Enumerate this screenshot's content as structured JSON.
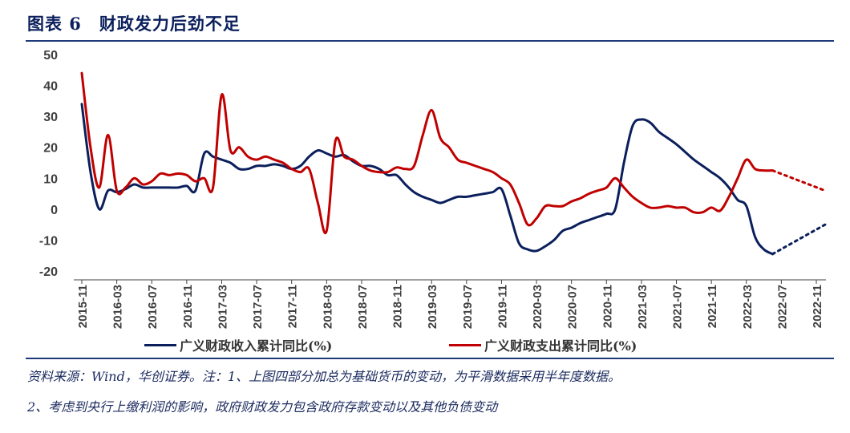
{
  "header": {
    "title": "图表 6　财政发力后劲不足"
  },
  "colors": {
    "revenue": "#0b1f5c",
    "expenditure": "#c00000",
    "axis": "#404040"
  },
  "chart_data": {
    "type": "line",
    "title": "",
    "xlabel": "",
    "ylabel": "",
    "ylim": [
      -20,
      50
    ],
    "yticks": [
      50,
      40,
      30,
      20,
      10,
      0,
      -10,
      -20
    ],
    "grid": false,
    "legend": "bottom",
    "x_start": "2015-11",
    "x_end": "2022-12",
    "x_tick_labels": [
      "2015-11",
      "2016-03",
      "2016-07",
      "2016-11",
      "2017-03",
      "2017-07",
      "2017-11",
      "2018-03",
      "2018-07",
      "2018-11",
      "2019-03",
      "2019-07",
      "2019-11",
      "2020-03",
      "2020-07",
      "2020-11",
      "2021-03",
      "2021-07",
      "2021-11",
      "2022-03",
      "2022-07",
      "2022-11"
    ],
    "series": [
      {
        "name": "广义财政收入累计同比(%)",
        "color": "#0b1f5c",
        "points": [
          [
            "2015-11",
            34
          ],
          [
            "2015-12",
            12
          ],
          [
            "2016-01",
            0
          ],
          [
            "2016-02",
            6
          ],
          [
            "2016-03",
            5.5
          ],
          [
            "2016-04",
            6.5
          ],
          [
            "2016-05",
            8
          ],
          [
            "2016-06",
            7
          ],
          [
            "2016-07",
            7
          ],
          [
            "2016-08",
            7
          ],
          [
            "2016-09",
            7
          ],
          [
            "2016-10",
            7
          ],
          [
            "2016-11",
            7.5
          ],
          [
            "2016-12",
            6
          ],
          [
            "2017-01",
            18
          ],
          [
            "2017-02",
            17
          ],
          [
            "2017-03",
            16
          ],
          [
            "2017-04",
            15
          ],
          [
            "2017-05",
            13
          ],
          [
            "2017-06",
            13
          ],
          [
            "2017-07",
            14
          ],
          [
            "2017-08",
            14
          ],
          [
            "2017-09",
            14.5
          ],
          [
            "2017-10",
            14
          ],
          [
            "2017-11",
            13
          ],
          [
            "2017-12",
            14
          ],
          [
            "2018-01",
            17
          ],
          [
            "2018-02",
            19
          ],
          [
            "2018-03",
            18
          ],
          [
            "2018-04",
            17
          ],
          [
            "2018-05",
            17.5
          ],
          [
            "2018-06",
            15.5
          ],
          [
            "2018-07",
            14
          ],
          [
            "2018-08",
            14
          ],
          [
            "2018-09",
            13
          ],
          [
            "2018-10",
            11
          ],
          [
            "2018-11",
            11
          ],
          [
            "2018-12",
            8
          ],
          [
            "2019-01",
            5.5
          ],
          [
            "2019-02",
            4
          ],
          [
            "2019-03",
            3
          ],
          [
            "2019-04",
            2
          ],
          [
            "2019-05",
            3
          ],
          [
            "2019-06",
            4
          ],
          [
            "2019-07",
            4
          ],
          [
            "2019-08",
            4.5
          ],
          [
            "2019-09",
            5
          ],
          [
            "2019-10",
            5.5
          ],
          [
            "2019-11",
            6.5
          ],
          [
            "2019-12",
            -2
          ],
          [
            "2020-01",
            -11
          ],
          [
            "2020-02",
            -13
          ],
          [
            "2020-03",
            -13.5
          ],
          [
            "2020-04",
            -12
          ],
          [
            "2020-05",
            -10
          ],
          [
            "2020-06",
            -7
          ],
          [
            "2020-07",
            -6
          ],
          [
            "2020-08",
            -4.5
          ],
          [
            "2020-09",
            -3.5
          ],
          [
            "2020-10",
            -2.5
          ],
          [
            "2020-11",
            -1.5
          ],
          [
            "2020-12",
            0
          ],
          [
            "2021-01",
            15
          ],
          [
            "2021-02",
            27
          ],
          [
            "2021-03",
            29
          ],
          [
            "2021-04",
            28
          ],
          [
            "2021-05",
            25
          ],
          [
            "2021-06",
            23
          ],
          [
            "2021-07",
            21
          ],
          [
            "2021-08",
            18.5
          ],
          [
            "2021-09",
            16
          ],
          [
            "2021-10",
            14
          ],
          [
            "2021-11",
            12
          ],
          [
            "2021-12",
            10
          ],
          [
            "2022-01",
            7
          ],
          [
            "2022-02",
            3
          ],
          [
            "2022-03",
            1
          ],
          [
            "2022-04",
            -9
          ],
          [
            "2022-05",
            -13
          ],
          [
            "2022-06",
            -14.5
          ]
        ],
        "projection": [
          [
            "2022-06",
            -14.5
          ],
          [
            "2022-12",
            -5
          ]
        ]
      },
      {
        "name": "广义财政支出累计同比(%)",
        "color": "#c00000",
        "points": [
          [
            "2015-11",
            44
          ],
          [
            "2015-12",
            20
          ],
          [
            "2016-01",
            7
          ],
          [
            "2016-02",
            24
          ],
          [
            "2016-03",
            6
          ],
          [
            "2016-04",
            7
          ],
          [
            "2016-05",
            10
          ],
          [
            "2016-06",
            8
          ],
          [
            "2016-07",
            9
          ],
          [
            "2016-08",
            11.5
          ],
          [
            "2016-09",
            11
          ],
          [
            "2016-10",
            11.5
          ],
          [
            "2016-11",
            11
          ],
          [
            "2016-12",
            9
          ],
          [
            "2017-01",
            10
          ],
          [
            "2017-02",
            7
          ],
          [
            "2017-03",
            37
          ],
          [
            "2017-04",
            19
          ],
          [
            "2017-05",
            20
          ],
          [
            "2017-06",
            17
          ],
          [
            "2017-07",
            16
          ],
          [
            "2017-08",
            17
          ],
          [
            "2017-09",
            16
          ],
          [
            "2017-10",
            15
          ],
          [
            "2017-11",
            13
          ],
          [
            "2017-12",
            12
          ],
          [
            "2018-01",
            13
          ],
          [
            "2018-02",
            2
          ],
          [
            "2018-03",
            -7
          ],
          [
            "2018-04",
            22
          ],
          [
            "2018-05",
            17
          ],
          [
            "2018-06",
            16
          ],
          [
            "2018-07",
            14
          ],
          [
            "2018-08",
            12.5
          ],
          [
            "2018-09",
            12
          ],
          [
            "2018-10",
            12
          ],
          [
            "2018-11",
            13.5
          ],
          [
            "2018-12",
            13
          ],
          [
            "2019-01",
            14
          ],
          [
            "2019-02",
            24
          ],
          [
            "2019-03",
            32
          ],
          [
            "2019-04",
            23
          ],
          [
            "2019-05",
            20
          ],
          [
            "2019-06",
            16
          ],
          [
            "2019-07",
            15
          ],
          [
            "2019-08",
            14
          ],
          [
            "2019-09",
            13
          ],
          [
            "2019-10",
            12
          ],
          [
            "2019-11",
            10
          ],
          [
            "2019-12",
            8
          ],
          [
            "2020-01",
            2
          ],
          [
            "2020-02",
            -5
          ],
          [
            "2020-03",
            -3
          ],
          [
            "2020-04",
            1
          ],
          [
            "2020-05",
            1
          ],
          [
            "2020-06",
            1
          ],
          [
            "2020-07",
            2.5
          ],
          [
            "2020-08",
            3.5
          ],
          [
            "2020-09",
            5
          ],
          [
            "2020-10",
            6
          ],
          [
            "2020-11",
            7
          ],
          [
            "2020-12",
            10
          ],
          [
            "2021-01",
            7
          ],
          [
            "2021-02",
            4
          ],
          [
            "2021-03",
            2
          ],
          [
            "2021-04",
            0.5
          ],
          [
            "2021-05",
            0.5
          ],
          [
            "2021-06",
            1
          ],
          [
            "2021-07",
            0.5
          ],
          [
            "2021-08",
            0.5
          ],
          [
            "2021-09",
            -1
          ],
          [
            "2021-10",
            -1
          ],
          [
            "2021-11",
            0.5
          ],
          [
            "2021-12",
            -0.5
          ],
          [
            "2022-01",
            4
          ],
          [
            "2022-02",
            10
          ],
          [
            "2022-03",
            16
          ],
          [
            "2022-04",
            13
          ],
          [
            "2022-05",
            12.5
          ],
          [
            "2022-06",
            12.5
          ]
        ],
        "projection": [
          [
            "2022-06",
            12.5
          ],
          [
            "2022-12",
            6
          ]
        ]
      }
    ]
  },
  "notes": {
    "line1": "资料来源：Wind，华创证券。注：1、上图四部分加总为基础货币的变动，为平滑数据采用半年度数据。",
    "line2": "2、考虑到央行上缴利润的影响，政府财政发力包含政府存款变动以及其他负债变动"
  }
}
